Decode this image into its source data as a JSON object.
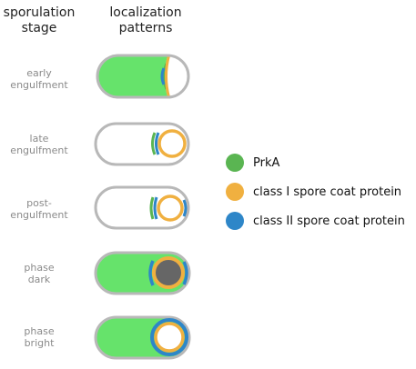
{
  "headers": {
    "stage": [
      "sporulation",
      "stage"
    ],
    "localization": [
      "localization",
      "patterns"
    ]
  },
  "stages": [
    {
      "label": [
        "early",
        "engulfment"
      ]
    },
    {
      "label": [
        "late",
        "engulfment"
      ]
    },
    {
      "label": [
        "post-",
        "engulfment"
      ]
    },
    {
      "label": [
        "phase",
        "dark"
      ]
    },
    {
      "label": [
        "phase",
        "bright"
      ]
    }
  ],
  "legend": [
    {
      "label": "PrkA",
      "color": "#5ab552",
      "icon": "green-dot-icon"
    },
    {
      "label": "class I spore coat protein",
      "color": "#f0b040",
      "icon": "orange-dot-icon"
    },
    {
      "label": "class II spore coat protein",
      "color": "#2e86c8",
      "icon": "blue-dot-icon"
    }
  ],
  "colors": {
    "cell_outline": "#b8b8b8",
    "cytoplasm": "#66e36b",
    "prka": "#5ab552",
    "class_i": "#f0b040",
    "class_ii": "#2e86c8",
    "phase_dark_core": "#666666",
    "header_text": "#222222",
    "stage_text": "#8a8a8a"
  }
}
